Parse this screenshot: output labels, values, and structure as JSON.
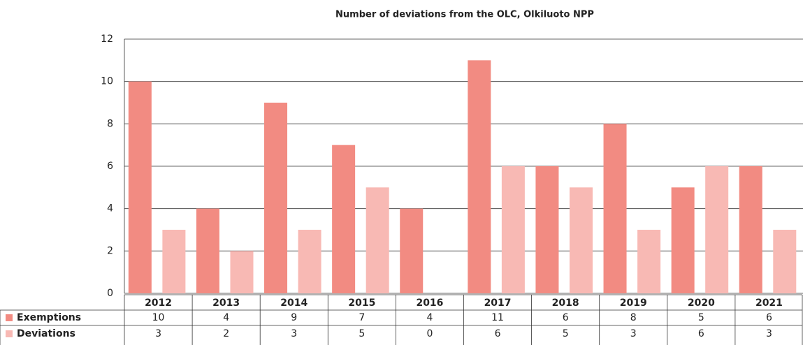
{
  "chart_data": {
    "type": "bar",
    "title": "Number of deviations from the OLC, Olkiluoto NPP",
    "categories": [
      "2012",
      "2013",
      "2014",
      "2015",
      "2016",
      "2017",
      "2018",
      "2019",
      "2020",
      "2021"
    ],
    "series": [
      {
        "name": "Exemptions",
        "color": "#f28b82",
        "values": [
          10,
          4,
          9,
          7,
          4,
          11,
          6,
          8,
          5,
          6
        ]
      },
      {
        "name": "Deviations",
        "color": "#f8b9b4",
        "values": [
          3,
          2,
          3,
          5,
          0,
          6,
          5,
          3,
          6,
          3
        ]
      }
    ],
    "ylim": [
      0,
      12
    ],
    "yticks": [
      0,
      2,
      4,
      6,
      8,
      10,
      12
    ],
    "grid": true
  }
}
